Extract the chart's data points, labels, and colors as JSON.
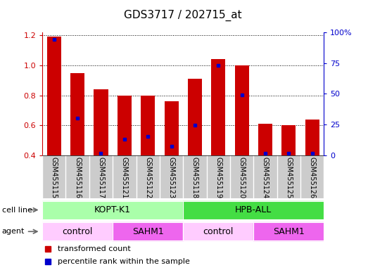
{
  "title": "GDS3717 / 202715_at",
  "samples": [
    "GSM455115",
    "GSM455116",
    "GSM455117",
    "GSM455121",
    "GSM455122",
    "GSM455123",
    "GSM455118",
    "GSM455119",
    "GSM455120",
    "GSM455124",
    "GSM455125",
    "GSM455126"
  ],
  "red_values": [
    1.19,
    0.95,
    0.84,
    0.8,
    0.8,
    0.76,
    0.91,
    1.04,
    1.0,
    0.61,
    0.6,
    0.64
  ],
  "blue_values": [
    1.175,
    0.65,
    0.415,
    0.505,
    0.525,
    0.462,
    0.602,
    1.0,
    0.805,
    0.412,
    0.412,
    0.412
  ],
  "ylim_left": [
    0.4,
    1.22
  ],
  "ylim_right": [
    0,
    100
  ],
  "yticks_left": [
    0.4,
    0.6,
    0.8,
    1.0,
    1.2
  ],
  "yticks_right": [
    0,
    25,
    50,
    75,
    100
  ],
  "ytick_labels_right": [
    "0",
    "25",
    "50",
    "75",
    "100%"
  ],
  "bar_color": "#cc0000",
  "blue_color": "#0000cc",
  "bar_width": 0.6,
  "cell_line_data": [
    {
      "label": "KOPT-K1",
      "start": 0,
      "end": 6,
      "color": "#aaffaa"
    },
    {
      "label": "HPB-ALL",
      "start": 6,
      "end": 12,
      "color": "#44dd44"
    }
  ],
  "agent_data": [
    {
      "label": "control",
      "start": 0,
      "end": 3,
      "color": "#ffccff"
    },
    {
      "label": "SAHM1",
      "start": 3,
      "end": 6,
      "color": "#ee66ee"
    },
    {
      "label": "control",
      "start": 6,
      "end": 9,
      "color": "#ffccff"
    },
    {
      "label": "SAHM1",
      "start": 9,
      "end": 12,
      "color": "#ee66ee"
    }
  ],
  "legend_items": [
    {
      "label": "transformed count",
      "color": "#cc0000"
    },
    {
      "label": "percentile rank within the sample",
      "color": "#0000cc"
    }
  ],
  "cell_line_label": "cell line",
  "agent_label": "agent",
  "background_color": "#ffffff",
  "tick_bg_color": "#cccccc",
  "gridcolor": "#000000",
  "grid_linestyle": ":"
}
